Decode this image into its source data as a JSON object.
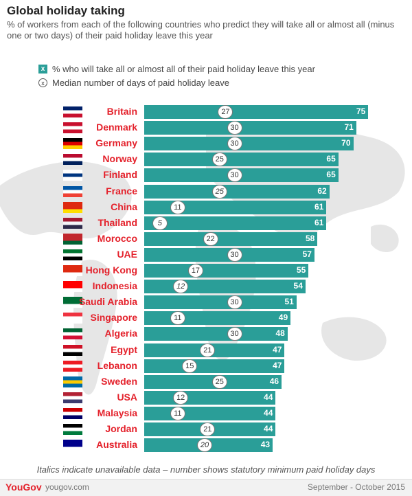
{
  "title": "Global holiday taking",
  "subtitle": "% of workers from each of the following countries who predict they will take all or almost all (minus one or two days) of their paid holiday leave this year",
  "legend": {
    "bar_marker": "x",
    "bar_label": "% who will take all or almost all of their paid holiday leave this year",
    "dot_marker": "x",
    "dot_label": "Median number of days of paid holiday leave"
  },
  "footnote": "Italics indicate unavailable data – number shows statutory minimum paid holiday days",
  "footer": {
    "brand": "YouGov",
    "site": "yougov.com",
    "date": "September - October 2015"
  },
  "colors": {
    "bar": "#2a9e98",
    "country": "#e4212b"
  },
  "chart_data": {
    "type": "bar",
    "orientation": "horizontal",
    "categories": [
      "Britain",
      "Denmark",
      "Germany",
      "Norway",
      "Finland",
      "France",
      "China",
      "Thailand",
      "Morocco",
      "UAE",
      "Hong Kong",
      "Indonesia",
      "Saudi Arabia",
      "Singapore",
      "Algeria",
      "Egypt",
      "Lebanon",
      "Sweden",
      "USA",
      "Malaysia",
      "Jordan",
      "Australia"
    ],
    "series": [
      {
        "name": "% who will take all or almost all of their paid holiday leave this year",
        "values": [
          75,
          71,
          70,
          65,
          65,
          62,
          61,
          61,
          58,
          57,
          55,
          54,
          51,
          49,
          48,
          47,
          47,
          46,
          44,
          44,
          44,
          43
        ]
      },
      {
        "name": "Median number of days of paid holiday leave",
        "values": [
          27,
          30,
          30,
          25,
          30,
          25,
          11,
          5,
          22,
          30,
          17,
          12,
          30,
          11,
          30,
          21,
          15,
          25,
          12,
          11,
          21,
          20
        ],
        "italic": [
          false,
          false,
          false,
          false,
          false,
          true,
          false,
          true,
          false,
          false,
          false,
          true,
          false,
          false,
          false,
          false,
          false,
          false,
          false,
          false,
          false,
          true
        ]
      }
    ],
    "xlim": [
      0,
      100
    ]
  }
}
